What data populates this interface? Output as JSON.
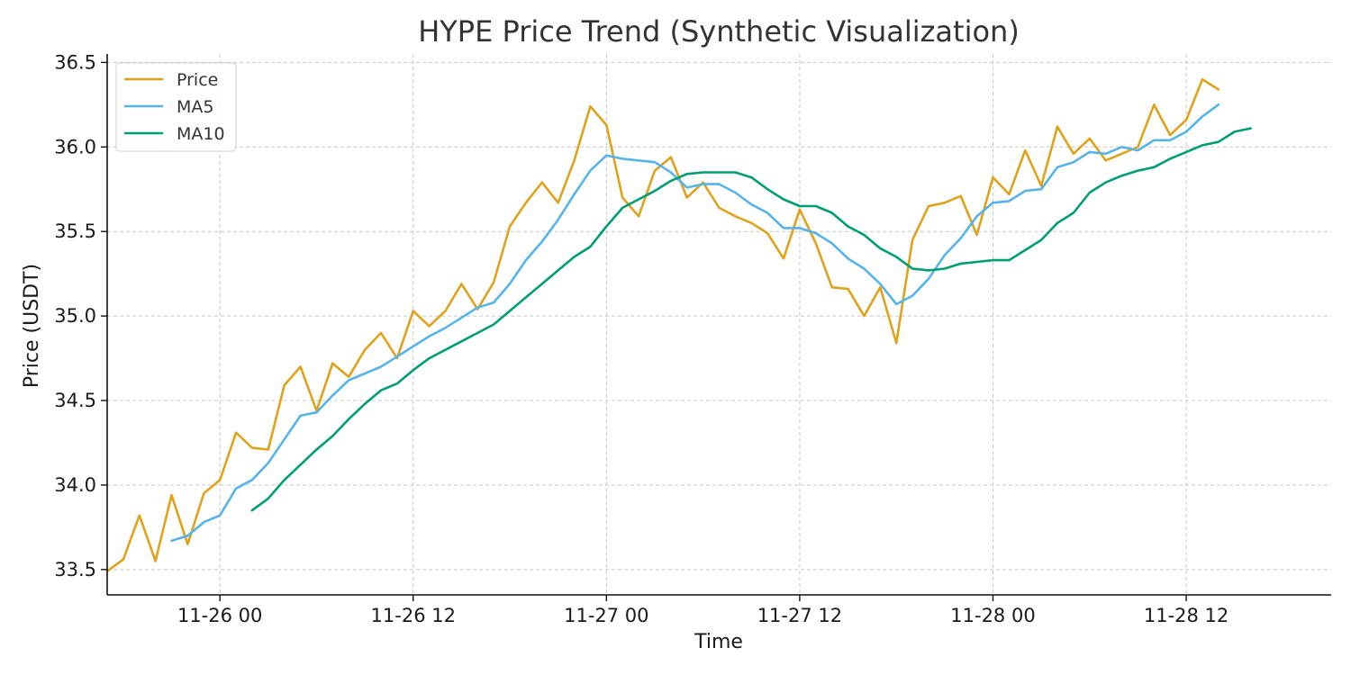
{
  "chart_data": {
    "type": "line",
    "title": "HYPE Price Trend (Synthetic Visualization)",
    "xlabel": "Time",
    "ylabel": "Price (USDT)",
    "x_unit": "hours since 11-26 00",
    "xlim": [
      -7,
      69
    ],
    "ylim": [
      33.35,
      36.55
    ],
    "xticks": [
      {
        "value": 0,
        "label": "11-26 00"
      },
      {
        "value": 12,
        "label": "11-26 12"
      },
      {
        "value": 24,
        "label": "11-27 00"
      },
      {
        "value": 36,
        "label": "11-27 12"
      },
      {
        "value": 48,
        "label": "11-28 00"
      },
      {
        "value": 60,
        "label": "11-28 12"
      }
    ],
    "yticks": [
      {
        "value": 33.5,
        "label": "33.5"
      },
      {
        "value": 34.0,
        "label": "34.0"
      },
      {
        "value": 34.5,
        "label": "34.5"
      },
      {
        "value": 35.0,
        "label": "35.0"
      },
      {
        "value": 35.5,
        "label": "35.5"
      },
      {
        "value": 36.0,
        "label": "36.0"
      },
      {
        "value": 36.5,
        "label": "36.5"
      }
    ],
    "grid": true,
    "legend_position": "top-left",
    "x_start": -7,
    "x_step": 1,
    "series": [
      {
        "name": "Price",
        "color": "#E0A21B",
        "start_index": 0,
        "values": [
          33.49,
          33.56,
          33.82,
          33.55,
          33.94,
          33.65,
          33.95,
          34.03,
          34.31,
          34.22,
          34.21,
          34.59,
          34.7,
          34.44,
          34.72,
          34.64,
          34.8,
          34.9,
          34.75,
          35.03,
          34.94,
          35.03,
          35.19,
          35.04,
          35.2,
          35.53,
          35.67,
          35.79,
          35.67,
          35.92,
          36.24,
          36.13,
          35.7,
          35.59,
          35.86,
          35.94,
          35.7,
          35.79,
          35.64,
          35.59,
          35.55,
          35.49,
          35.34,
          35.63,
          35.43,
          35.17,
          35.16,
          35.0,
          35.17,
          34.84,
          35.45,
          35.65,
          35.67,
          35.71,
          35.48,
          35.82,
          35.72,
          35.98,
          35.77,
          36.12,
          35.96,
          36.05,
          35.92,
          35.96,
          36.0,
          36.25,
          36.07,
          36.16,
          36.4,
          36.34
        ]
      },
      {
        "name": "MA5",
        "color": "#56B4E9",
        "start_index": 4,
        "values": [
          33.67,
          33.7,
          33.78,
          33.82,
          33.98,
          34.03,
          34.13,
          34.27,
          34.41,
          34.43,
          34.53,
          34.62,
          34.66,
          34.7,
          34.76,
          34.82,
          34.88,
          34.93,
          34.99,
          35.05,
          35.08,
          35.19,
          35.33,
          35.44,
          35.57,
          35.72,
          35.86,
          35.95,
          35.93,
          35.92,
          35.91,
          35.85,
          35.76,
          35.78,
          35.78,
          35.73,
          35.66,
          35.61,
          35.52,
          35.52,
          35.49,
          35.43,
          35.34,
          35.28,
          35.19,
          35.07,
          35.12,
          35.22,
          35.36,
          35.46,
          35.59,
          35.67,
          35.68,
          35.74,
          35.75,
          35.88,
          35.91,
          35.97,
          35.96,
          36.0,
          35.98,
          36.04,
          36.04,
          36.09,
          36.18,
          36.25
        ]
      },
      {
        "name": "MA10",
        "color": "#009E73",
        "start_index": 9,
        "values": [
          33.85,
          33.92,
          34.03,
          34.12,
          34.21,
          34.29,
          34.39,
          34.48,
          34.56,
          34.6,
          34.68,
          34.75,
          34.8,
          34.85,
          34.9,
          34.95,
          35.03,
          35.11,
          35.19,
          35.27,
          35.35,
          35.41,
          35.53,
          35.64,
          35.69,
          35.74,
          35.8,
          35.84,
          35.85,
          35.85,
          35.85,
          35.82,
          35.75,
          35.69,
          35.65,
          35.65,
          35.61,
          35.53,
          35.48,
          35.4,
          35.35,
          35.28,
          35.27,
          35.28,
          35.31,
          35.32,
          35.33,
          35.33,
          35.39,
          35.45,
          35.55,
          35.61,
          35.73,
          35.79,
          35.83,
          35.86,
          35.88,
          35.93,
          35.97,
          36.01,
          36.03,
          36.09,
          36.11
        ]
      }
    ]
  }
}
